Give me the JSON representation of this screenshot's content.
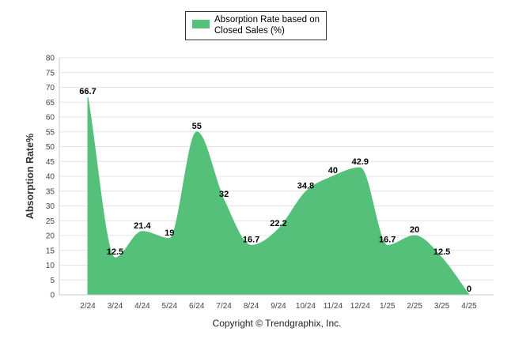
{
  "chart_data": {
    "type": "area",
    "title": "",
    "legend": {
      "label": "Absorption Rate based on Closed Sales (%)",
      "position": "top-center"
    },
    "ylabel": "Absorption Rate%",
    "xlabel": "",
    "ylim": [
      0,
      80
    ],
    "yticks": [
      0,
      5,
      10,
      15,
      20,
      25,
      30,
      35,
      40,
      45,
      50,
      55,
      60,
      65,
      70,
      75,
      80
    ],
    "grid": true,
    "categories": [
      "2/24",
      "3/24",
      "4/24",
      "5/24",
      "6/24",
      "7/24",
      "8/24",
      "9/24",
      "10/24",
      "11/24",
      "12/24",
      "1/25",
      "2/25",
      "3/25",
      "4/25"
    ],
    "series": [
      {
        "name": "Absorption Rate based on Closed Sales (%)",
        "values": [
          66.7,
          12.5,
          21.4,
          19,
          55,
          32,
          16.7,
          22.2,
          34.8,
          40,
          42.9,
          16.7,
          20,
          12.5,
          0
        ],
        "labels": [
          "66.7",
          "12.5",
          "21.4",
          "19",
          "55",
          "32",
          "16.7",
          "22.2",
          "34.8",
          "40",
          "42.9",
          "16.7",
          "20",
          "12.5",
          "0"
        ]
      }
    ],
    "colors": {
      "fill": "#55c07a",
      "grid": "#e4e4e4",
      "axis": "#c8c8c8"
    },
    "footer": "Copyright © Trendgraphix, Inc."
  }
}
